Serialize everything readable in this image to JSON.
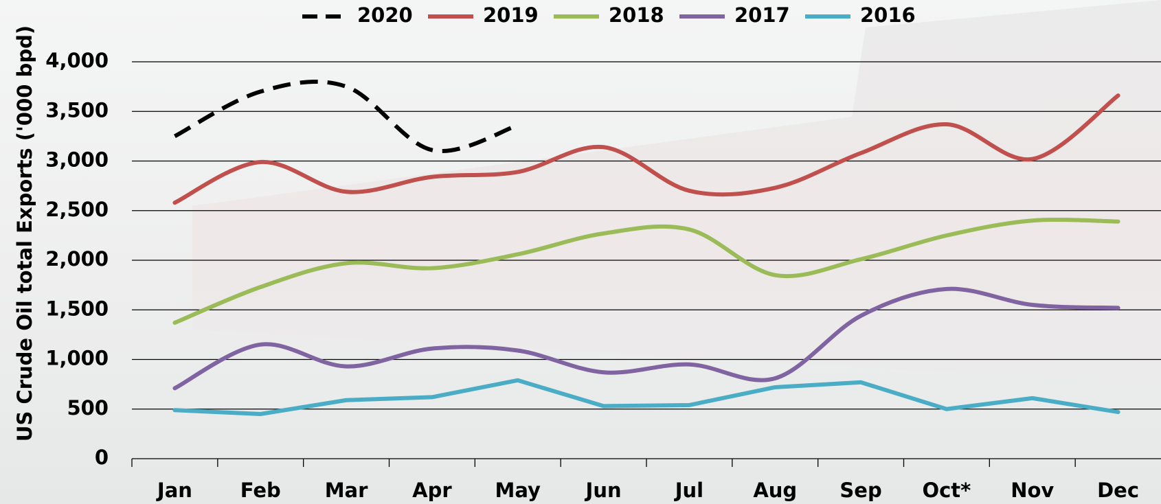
{
  "chart_data": {
    "type": "line",
    "y_label": "US Crude Oil total Exports ('000 bpd)",
    "categories": [
      "Jan",
      "Feb",
      "Mar",
      "Apr",
      "May",
      "Jun",
      "Jul",
      "Aug",
      "Sep",
      "Oct*",
      "Nov",
      "Dec"
    ],
    "ylim": [
      0,
      4000
    ],
    "yticks": [
      0,
      500,
      {
        "value": 1000,
        "label": "1,000"
      },
      {
        "value": 1500,
        "label": "1,500"
      },
      {
        "value": 2000,
        "label": "2,000"
      },
      {
        "value": 2500,
        "label": "2,500"
      },
      {
        "value": 3000,
        "label": "3,000"
      },
      {
        "value": 3500,
        "label": "3,500"
      },
      {
        "value": 4000,
        "label": "4,000"
      }
    ],
    "grid": true,
    "legend": "top",
    "series": [
      {
        "name": "2020",
        "color": "#000000",
        "dashed": true,
        "smooth": true,
        "values": [
          3250,
          3700,
          3750,
          3110,
          3360,
          null,
          null,
          null,
          null,
          null,
          null,
          null
        ]
      },
      {
        "name": "2019",
        "color": "#c0504d",
        "dashed": false,
        "smooth": true,
        "values": [
          2580,
          2990,
          2690,
          2840,
          2890,
          3140,
          2700,
          2730,
          3080,
          3370,
          3020,
          3660
        ]
      },
      {
        "name": "2018",
        "color": "#9bbb59",
        "dashed": false,
        "smooth": true,
        "values": [
          1370,
          1730,
          1970,
          1920,
          2060,
          2270,
          2310,
          1850,
          2010,
          2250,
          2400,
          2390
        ]
      },
      {
        "name": "2017",
        "color": "#8064a2",
        "dashed": false,
        "smooth": true,
        "values": [
          710,
          1150,
          930,
          1110,
          1090,
          870,
          950,
          810,
          1440,
          1710,
          1550,
          1520
        ]
      },
      {
        "name": "2016",
        "color": "#4bacc6",
        "dashed": false,
        "smooth": false,
        "values": [
          490,
          450,
          590,
          620,
          790,
          530,
          540,
          720,
          770,
          500,
          610,
          470
        ]
      }
    ]
  }
}
